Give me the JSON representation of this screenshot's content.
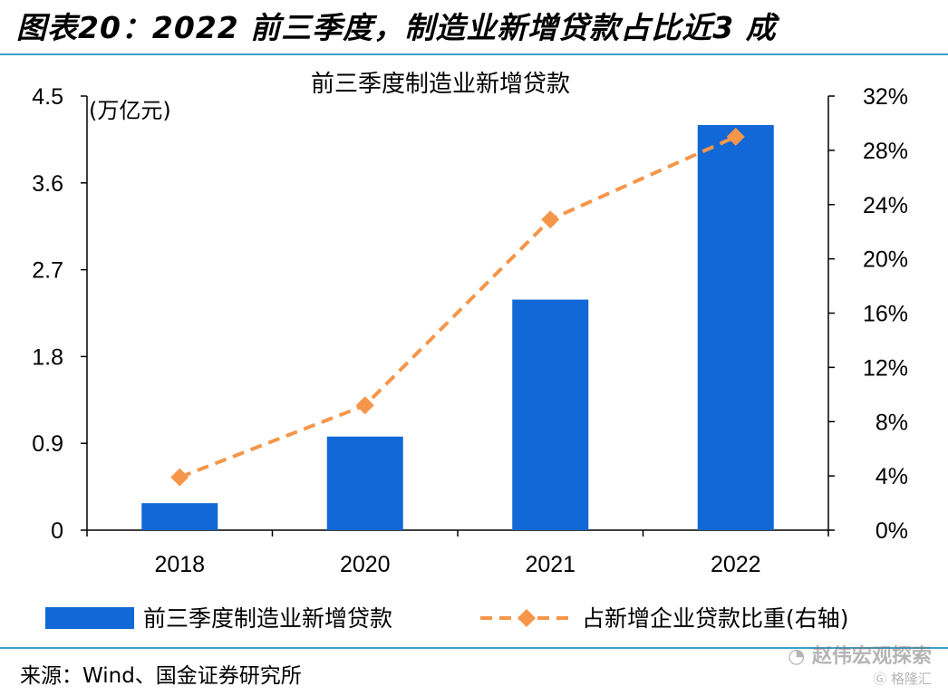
{
  "figure": {
    "title": "图表20：2022 前三季度，制造业新增贷款占比近3 成",
    "source": "来源：Wind、国金证券研究所"
  },
  "watermark": {
    "primary": "赵伟宏观探索",
    "secondary": "格隆汇",
    "icon": "wechat-icon"
  },
  "colors": {
    "bar": "#1168d6",
    "line": "#f5964a",
    "rule": "#3aa0c8"
  },
  "chart_data": {
    "type": "bar",
    "title": "前三季度制造业新增贷款",
    "categories": [
      "2018",
      "2020",
      "2021",
      "2022"
    ],
    "y_unit_label": "(万亿元)",
    "ylim": [
      0,
      4.5
    ],
    "yticks": [
      "0",
      "0.9",
      "1.8",
      "2.7",
      "3.6",
      "4.5"
    ],
    "y2lim": [
      0,
      32
    ],
    "y2ticks": [
      "0%",
      "4%",
      "8%",
      "12%",
      "16%",
      "20%",
      "24%",
      "28%",
      "32%"
    ],
    "series": [
      {
        "name": "前三季度制造业新增贷款",
        "type": "bar",
        "axis": "left",
        "values": [
          0.28,
          0.97,
          2.39,
          4.2
        ]
      },
      {
        "name": "占新增企业贷款比重(右轴)",
        "type": "line",
        "axis": "right",
        "style": "dashed",
        "marker": "diamond",
        "values": [
          3.9,
          9.2,
          22.9,
          29.0
        ]
      }
    ],
    "grid": false,
    "legend_position": "bottom"
  }
}
